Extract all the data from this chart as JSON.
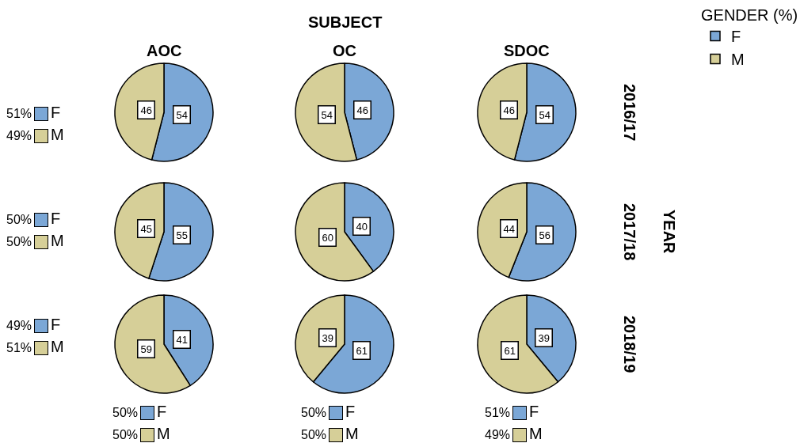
{
  "chart_data": [
    {
      "type": "other",
      "title": "SUBJECT",
      "ylabel": "YEAR"
    },
    {
      "type": "pie",
      "title": "AOC",
      "legend": "top right",
      "legend_title": "GENDER (%)",
      "categories": [
        "F",
        "M"
      ],
      "values": [
        54,
        46
      ],
      "colors": [
        "#7ba7d6",
        "#d6cf98"
      ],
      "data_labels": true
    },
    {
      "type": "pie",
      "title": "OC",
      "categories": [
        null,
        null
      ],
      "values": [
        46,
        54
      ],
      "colors": [
        "#7ba7d6",
        "#d6cf98"
      ],
      "data_labels": true
    },
    {
      "type": "pie",
      "title": "SDOC",
      "y2label": "2016/17",
      "categories": [
        null,
        null
      ],
      "values": [
        54,
        46
      ],
      "colors": [
        "#7ba7d6",
        "#d6cf98"
      ],
      "data_labels": true
    },
    {
      "type": "pie",
      "categories": [
        null,
        null
      ],
      "values": [
        55,
        45
      ],
      "colors": [
        "#7ba7d6",
        "#d6cf98"
      ],
      "data_labels": true
    },
    {
      "type": "pie",
      "categories": [
        null,
        null
      ],
      "values": [
        40,
        60
      ],
      "colors": [
        "#7ba7d6",
        "#d6cf98"
      ],
      "data_labels": true
    },
    {
      "type": "pie",
      "y2label": "2017/18",
      "categories": [
        null,
        null
      ],
      "values": [
        56,
        44
      ],
      "colors": [
        "#7ba7d6",
        "#d6cf98"
      ],
      "data_labels": true
    },
    {
      "type": "pie",
      "categories": [
        null,
        null
      ],
      "values": [
        41,
        59
      ],
      "colors": [
        "#7ba7d6",
        "#d6cf98"
      ],
      "data_labels": true
    },
    {
      "type": "pie",
      "categories": [
        null,
        null
      ],
      "values": [
        61,
        39
      ],
      "colors": [
        "#7ba7d6",
        "#d6cf98"
      ],
      "data_labels": true
    },
    {
      "type": "pie",
      "y2label": "2018/19",
      "categories": [
        null,
        null
      ],
      "values": [
        39,
        61
      ],
      "colors": [
        "#7ba7d6",
        "#d6cf98"
      ],
      "data_labels": true
    },
    {
      "type": "other",
      "categories": [
        "F",
        "M"
      ],
      "colors": [
        "#7ba7d6",
        "#d6cf98"
      ],
      "annotations": [
        "51%",
        "49%"
      ]
    },
    {
      "type": "other",
      "categories": [
        "F",
        "M"
      ],
      "colors": [
        "#7ba7d6",
        "#d6cf98"
      ],
      "annotations": [
        "50%",
        "50%"
      ]
    },
    {
      "type": "other",
      "categories": [
        "F",
        "M"
      ],
      "colors": [
        "#7ba7d6",
        "#d6cf98"
      ],
      "annotations": [
        "49%",
        "51%"
      ]
    },
    {
      "type": "other",
      "categories": [
        "F",
        "M"
      ],
      "colors": [
        "#7ba7d6",
        "#d6cf98"
      ],
      "annotations": [
        "50%",
        "50%"
      ]
    },
    {
      "type": "other",
      "categories": [
        "F",
        "M"
      ],
      "colors": [
        "#7ba7d6",
        "#d6cf98"
      ],
      "annotations": [
        "50%",
        "50%"
      ]
    },
    {
      "type": "other",
      "categories": [
        "F",
        "M"
      ],
      "colors": [
        "#7ba7d6",
        "#d6cf98"
      ],
      "annotations": [
        "51%",
        "49%"
      ]
    }
  ]
}
